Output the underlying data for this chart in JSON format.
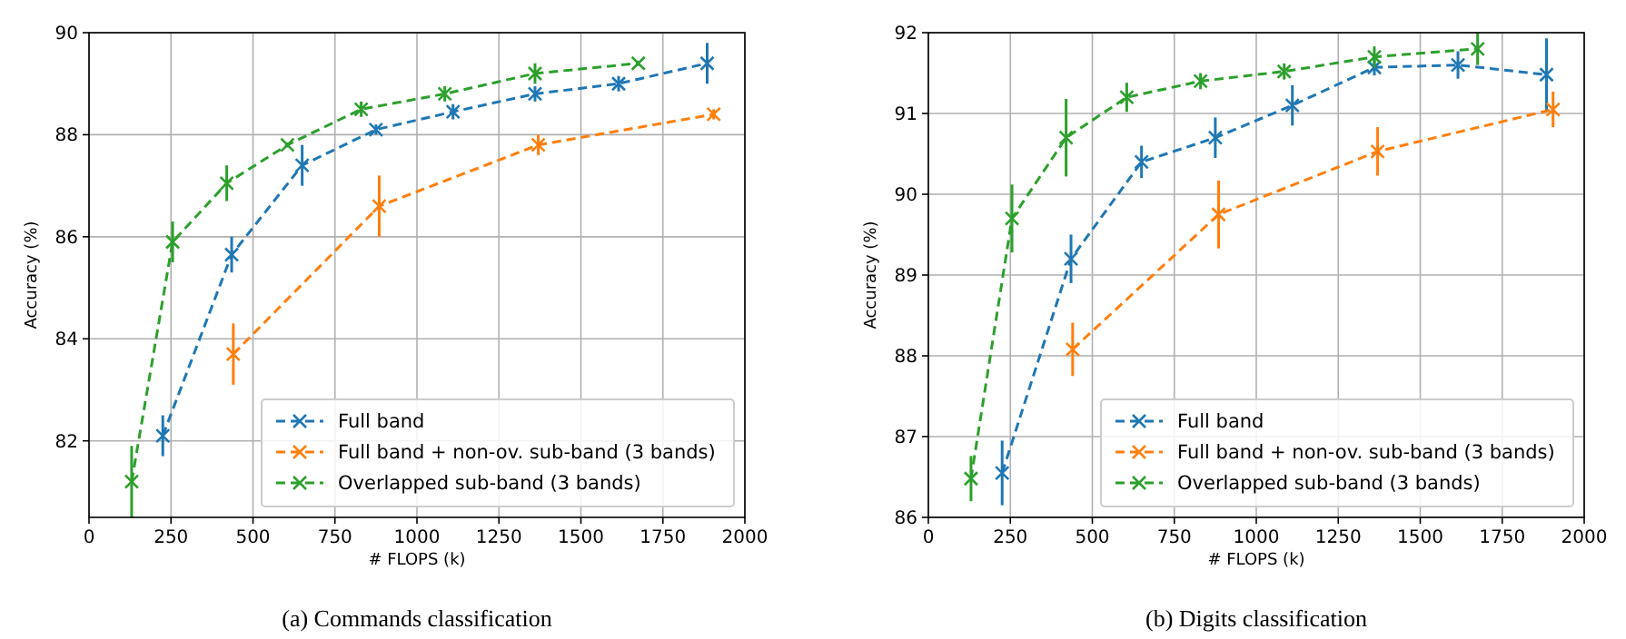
{
  "chart_data": [
    {
      "type": "line",
      "xlabel": "# FLOPS (k)",
      "ylabel": "Accuracy (%)",
      "annotations": [
        "(a) Commands classification"
      ],
      "xlim": [
        0,
        2000
      ],
      "xticks": [
        0,
        250,
        500,
        750,
        1000,
        1250,
        1500,
        1750,
        2000
      ],
      "ylim": [
        80.5,
        90
      ],
      "yticks": [
        82,
        84,
        86,
        88,
        90
      ],
      "grid": true,
      "legend": "bottom right",
      "marker": "cross",
      "line_style": "dashed",
      "series": [
        {
          "name": "Full band",
          "color": "#1f77b4",
          "x": [
            225,
            435,
            650,
            875,
            1110,
            1360,
            1615,
            1885
          ],
          "values": [
            82.1,
            85.65,
            87.4,
            88.1,
            88.45,
            88.8,
            89.0,
            89.4
          ],
          "errors": [
            0.4,
            0.35,
            0.4,
            0.1,
            0.15,
            0.15,
            0.15,
            0.4
          ]
        },
        {
          "name": "Full band + non-ov. sub-band (3 bands)",
          "color": "#ff7f0e",
          "x": [
            440,
            885,
            1370,
            1905
          ],
          "values": [
            83.7,
            86.6,
            87.8,
            88.4
          ],
          "errors": [
            0.6,
            0.6,
            0.2,
            0.1
          ]
        },
        {
          "name": "Overlapped sub-band (3 bands)",
          "color": "#2ca02c",
          "x": [
            130,
            255,
            420,
            605,
            830,
            1085,
            1360,
            1675
          ],
          "values": [
            81.2,
            85.9,
            87.05,
            87.8,
            88.5,
            88.8,
            89.2,
            89.4
          ],
          "errors": [
            0.7,
            0.4,
            0.35,
            0.05,
            0.15,
            0.15,
            0.2,
            0.05
          ]
        }
      ]
    },
    {
      "type": "line",
      "xlabel": "# FLOPS (k)",
      "ylabel": "Accuracy (%)",
      "annotations": [
        "(b) Digits classification"
      ],
      "xlim": [
        0,
        2000
      ],
      "xticks": [
        0,
        250,
        500,
        750,
        1000,
        1250,
        1500,
        1750,
        2000
      ],
      "ylim": [
        86,
        92
      ],
      "yticks": [
        86,
        87,
        88,
        89,
        90,
        91,
        92
      ],
      "grid": true,
      "legend": "bottom right",
      "marker": "cross",
      "line_style": "dashed",
      "series": [
        {
          "name": "Full band",
          "color": "#1f77b4",
          "x": [
            225,
            435,
            650,
            875,
            1110,
            1360,
            1615,
            1885
          ],
          "values": [
            86.55,
            89.2,
            90.4,
            90.7,
            91.1,
            91.57,
            91.6,
            91.48
          ],
          "errors": [
            0.4,
            0.3,
            0.2,
            0.25,
            0.25,
            0.1,
            0.17,
            0.45
          ]
        },
        {
          "name": "Full band + non-ov. sub-band (3 bands)",
          "color": "#ff7f0e",
          "x": [
            440,
            885,
            1370,
            1905
          ],
          "values": [
            88.08,
            89.75,
            90.53,
            91.05
          ],
          "errors": [
            0.33,
            0.42,
            0.3,
            0.22
          ]
        },
        {
          "name": "Overlapped sub-band (3 bands)",
          "color": "#2ca02c",
          "x": [
            130,
            255,
            420,
            605,
            830,
            1085,
            1360,
            1675
          ],
          "values": [
            86.48,
            89.7,
            90.7,
            91.2,
            91.4,
            91.52,
            91.7,
            91.8
          ],
          "errors": [
            0.28,
            0.42,
            0.48,
            0.18,
            0.1,
            0.1,
            0.13,
            0.2
          ]
        }
      ]
    }
  ]
}
